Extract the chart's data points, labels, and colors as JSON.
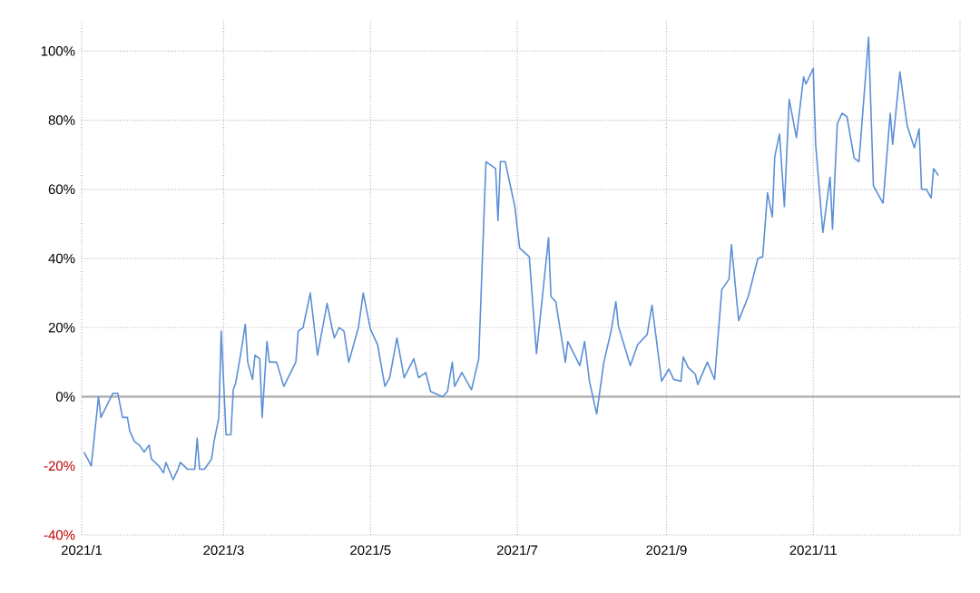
{
  "chart_data": {
    "type": "line",
    "x": [
      "2021-01-02",
      "2021-01-05",
      "2021-01-08",
      "2021-01-09",
      "2021-01-14",
      "2021-01-16",
      "2021-01-18",
      "2021-01-20",
      "2021-01-21",
      "2021-01-23",
      "2021-01-25",
      "2021-01-27",
      "2021-01-29",
      "2021-01-30",
      "2021-02-02",
      "2021-02-04",
      "2021-02-05",
      "2021-02-08",
      "2021-02-10",
      "2021-02-11",
      "2021-02-14",
      "2021-02-17",
      "2021-02-18",
      "2021-02-19",
      "2021-02-21",
      "2021-02-24",
      "2021-02-25",
      "2021-02-27",
      "2021-02-28",
      "2021-03-02",
      "2021-03-04",
      "2021-03-05",
      "2021-03-06",
      "2021-03-08",
      "2021-03-10",
      "2021-03-11",
      "2021-03-13",
      "2021-03-14",
      "2021-03-16",
      "2021-03-17",
      "2021-03-19",
      "2021-03-20",
      "2021-03-23",
      "2021-03-26",
      "2021-03-31",
      "2021-04-01",
      "2021-04-03",
      "2021-04-06",
      "2021-04-09",
      "2021-04-13",
      "2021-04-15",
      "2021-04-16",
      "2021-04-18",
      "2021-04-20",
      "2021-04-22",
      "2021-04-26",
      "2021-04-28",
      "2021-05-01",
      "2021-05-04",
      "2021-05-07",
      "2021-05-09",
      "2021-05-12",
      "2021-05-15",
      "2021-05-19",
      "2021-05-21",
      "2021-05-24",
      "2021-05-26",
      "2021-05-31",
      "2021-06-02",
      "2021-06-04",
      "2021-06-05",
      "2021-06-08",
      "2021-06-12",
      "2021-06-15",
      "2021-06-18",
      "2021-06-22",
      "2021-06-23",
      "2021-06-24",
      "2021-06-26",
      "2021-06-30",
      "2021-07-02",
      "2021-07-06",
      "2021-07-09",
      "2021-07-14",
      "2021-07-15",
      "2021-07-17",
      "2021-07-21",
      "2021-07-22",
      "2021-07-27",
      "2021-07-29",
      "2021-07-31",
      "2021-08-03",
      "2021-08-06",
      "2021-08-09",
      "2021-08-11",
      "2021-08-12",
      "2021-08-17",
      "2021-08-20",
      "2021-08-24",
      "2021-08-26",
      "2021-08-29",
      "2021-08-30",
      "2021-09-02",
      "2021-09-04",
      "2021-09-07",
      "2021-09-08",
      "2021-09-10",
      "2021-09-13",
      "2021-09-14",
      "2021-09-18",
      "2021-09-21",
      "2021-09-24",
      "2021-09-27",
      "2021-09-28",
      "2021-10-01",
      "2021-10-05",
      "2021-10-09",
      "2021-10-11",
      "2021-10-13",
      "2021-10-15",
      "2021-10-16",
      "2021-10-18",
      "2021-10-20",
      "2021-10-22",
      "2021-10-25",
      "2021-10-28",
      "2021-10-29",
      "2021-11-01",
      "2021-11-02",
      "2021-11-05",
      "2021-11-08",
      "2021-11-09",
      "2021-11-11",
      "2021-11-13",
      "2021-11-15",
      "2021-11-18",
      "2021-11-20",
      "2021-11-24",
      "2021-11-26",
      "2021-11-30",
      "2021-12-03",
      "2021-12-04",
      "2021-12-07",
      "2021-12-10",
      "2021-12-13",
      "2021-12-15",
      "2021-12-16",
      "2021-12-18",
      "2021-12-20",
      "2021-12-21",
      "2021-12-23"
    ],
    "series": [
      {
        "color": "#5b8fd6",
        "values": [
          -16,
          -20,
          0,
          -6,
          1,
          1,
          -6,
          -6,
          -10,
          -13,
          -14,
          -16,
          -14,
          -18,
          -20,
          -22,
          -19,
          -24,
          -21,
          -19,
          -21,
          -21,
          -12,
          -21,
          -21,
          -18,
          -13,
          -6,
          19,
          -11,
          -11,
          2,
          4,
          12,
          21,
          10,
          5,
          12,
          11,
          -6,
          16,
          10,
          10,
          3,
          10,
          19,
          20,
          30,
          12,
          27,
          20,
          17,
          20,
          19,
          10,
          20,
          30,
          19.5,
          15,
          3,
          5.5,
          17,
          5.5,
          11,
          5.5,
          7,
          1.5,
          0,
          1.5,
          10,
          3,
          7,
          2,
          11,
          68,
          66,
          51,
          68,
          68,
          55,
          43,
          40.5,
          12.5,
          46,
          29,
          27.5,
          10,
          16,
          9,
          16,
          4.5,
          -5,
          10,
          19,
          27.5,
          20.5,
          9,
          15,
          18,
          26.5,
          10,
          4.5,
          8,
          5,
          4.5,
          11.5,
          8.5,
          6.5,
          3.5,
          10,
          5,
          31,
          34,
          44,
          22,
          29,
          40,
          40.5,
          59,
          52,
          69.5,
          76,
          55,
          86,
          75,
          92.5,
          90.5,
          95,
          73,
          47.5,
          63.5,
          48.5,
          79,
          82,
          81,
          69,
          68,
          104,
          61,
          56,
          82,
          73,
          94,
          78.5,
          72,
          77.5,
          60,
          60,
          57.5,
          66,
          64
        ]
      }
    ],
    "xlim": [
      "2021-01-01",
      "2022-01-01"
    ],
    "xticks": [
      {
        "value": "2021-01-01",
        "label": "2021/1"
      },
      {
        "value": "2021-03-01",
        "label": "2021/3"
      },
      {
        "value": "2021-05-01",
        "label": "2021/5"
      },
      {
        "value": "2021-07-01",
        "label": "2021/7"
      },
      {
        "value": "2021-09-01",
        "label": "2021/9"
      },
      {
        "value": "2021-11-01",
        "label": "2021/11"
      },
      {
        "value": "2022-01-01",
        "label": null
      }
    ],
    "ylim": [
      -40,
      109
    ],
    "yticks": [
      {
        "value": -40,
        "label": "-40%"
      },
      {
        "value": -20,
        "label": "-20%"
      },
      {
        "value": 0,
        "label": "0%"
      },
      {
        "value": 20,
        "label": "20%"
      },
      {
        "value": 40,
        "label": "40%"
      },
      {
        "value": 60,
        "label": "60%"
      },
      {
        "value": 80,
        "label": "80%"
      },
      {
        "value": 100,
        "label": "100%"
      }
    ],
    "grid": true,
    "marker": "none",
    "line_style": "solid"
  }
}
